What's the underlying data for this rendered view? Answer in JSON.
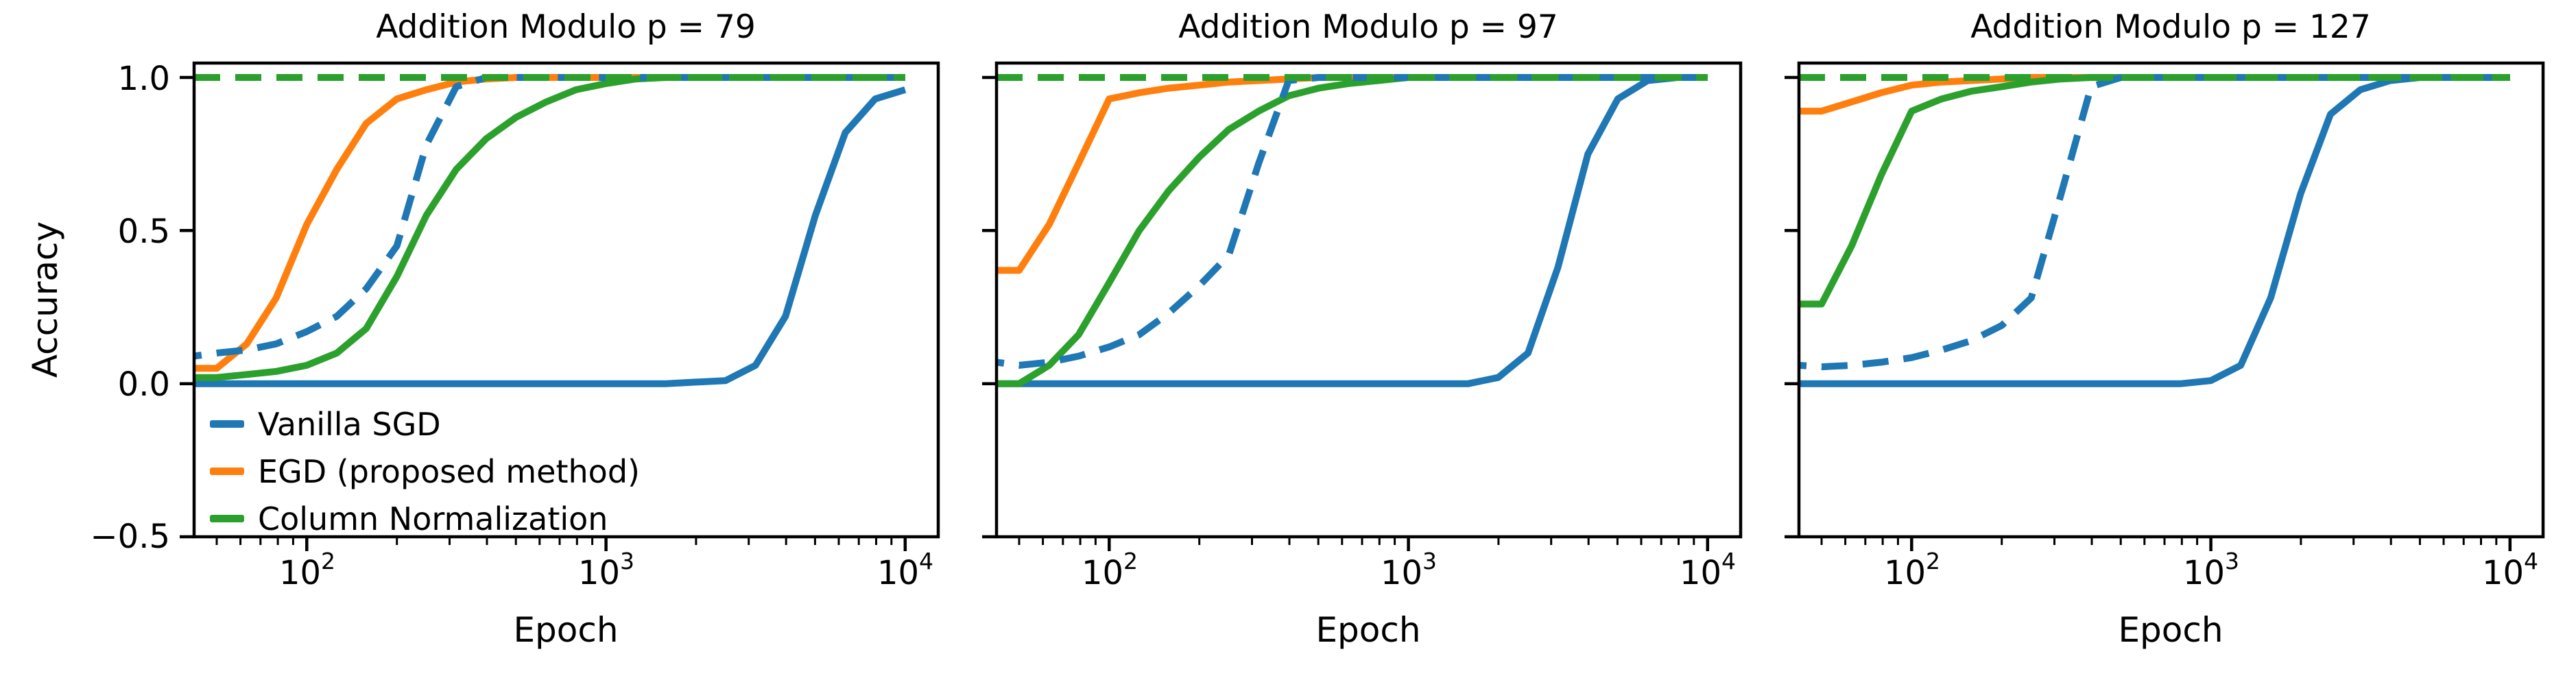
{
  "figure": {
    "ylabel": "Accuracy",
    "background": "#ffffff",
    "palette": {
      "blue": "#1f77b4",
      "orange": "#ff7f0e",
      "green": "#2ca02c"
    },
    "axis_color": "#000000",
    "yticks": [
      {
        "label": "1.0",
        "value": 1.0
      },
      {
        "label": "0.5",
        "value": 0.5
      },
      {
        "label": "0.0",
        "value": 0.0
      },
      {
        "label": "−0.5",
        "value": -0.5
      }
    ],
    "xticks": [
      {
        "base": "10",
        "exp": "2",
        "value": 100
      },
      {
        "base": "10",
        "exp": "3",
        "value": 1000
      },
      {
        "base": "10",
        "exp": "4",
        "value": 10000
      }
    ],
    "legend": [
      {
        "label": "Vanilla SGD",
        "color": "blue"
      },
      {
        "label": "EGD (proposed method)",
        "color": "orange"
      },
      {
        "label": "Column Normalization",
        "color": "green"
      }
    ]
  },
  "chart_data": [
    {
      "type": "line",
      "title": "Addition Modulo p = 79",
      "xlabel": "Epoch",
      "ylabel": "Accuracy",
      "xscale": "log",
      "xlim": [
        42,
        12900
      ],
      "ylim": [
        -0.5,
        1.047
      ],
      "grid": false,
      "legend_position": "lower left",
      "x": [
        42,
        50,
        63,
        79,
        100,
        126,
        158,
        200,
        251,
        316,
        398,
        501,
        631,
        794,
        1000,
        1259,
        1585,
        1995,
        2512,
        3162,
        3981,
        5012,
        6310,
        7943,
        10000
      ],
      "series": [
        {
          "name": "Vanilla SGD",
          "color": "blue",
          "line": "solid",
          "values": [
            0,
            0,
            0,
            0,
            0,
            0,
            0,
            0,
            0,
            0,
            0,
            0,
            0,
            0,
            0,
            0,
            0,
            0.005,
            0.01,
            0.06,
            0.22,
            0.55,
            0.82,
            0.93,
            0.96
          ]
        },
        {
          "name": "EGD (proposed method)",
          "color": "orange",
          "line": "solid",
          "values": [
            0.05,
            0.05,
            0.13,
            0.28,
            0.52,
            0.7,
            0.85,
            0.93,
            0.96,
            0.985,
            0.995,
            1,
            1,
            1,
            1,
            1,
            1,
            1,
            1,
            1,
            1,
            1,
            1,
            1,
            1
          ]
        },
        {
          "name": "Column Normalization",
          "color": "green",
          "line": "solid",
          "values": [
            0.02,
            0.02,
            0.03,
            0.04,
            0.06,
            0.1,
            0.18,
            0.35,
            0.55,
            0.7,
            0.8,
            0.87,
            0.92,
            0.96,
            0.98,
            0.995,
            1,
            1,
            1,
            1,
            1,
            1,
            1,
            1,
            1
          ]
        },
        {
          "name": "Vanilla SGD",
          "color": "blue",
          "line": "dashed",
          "values": [
            0.09,
            0.1,
            0.11,
            0.13,
            0.17,
            0.22,
            0.31,
            0.45,
            0.78,
            0.97,
            1,
            1,
            1,
            1,
            1,
            1,
            1,
            1,
            1,
            1,
            1,
            1,
            1,
            1,
            1
          ]
        },
        {
          "name": "Column Normalization",
          "color": "green",
          "line": "dashed",
          "values": [
            1,
            1,
            1,
            1,
            1,
            1,
            1,
            1,
            1,
            1,
            1,
            1,
            1,
            1,
            1,
            1,
            1,
            1,
            1,
            1,
            1,
            1,
            1,
            1,
            1
          ]
        }
      ]
    },
    {
      "type": "line",
      "title": "Addition Modulo p = 97",
      "xlabel": "Epoch",
      "ylabel": "Accuracy",
      "xscale": "log",
      "xlim": [
        42,
        12900
      ],
      "ylim": [
        -0.5,
        1.047
      ],
      "grid": false,
      "x": [
        42,
        50,
        63,
        79,
        100,
        126,
        158,
        200,
        251,
        316,
        398,
        501,
        631,
        794,
        1000,
        1259,
        1585,
        1995,
        2512,
        3162,
        3981,
        5012,
        6310,
        7943,
        10000
      ],
      "series": [
        {
          "name": "Vanilla SGD",
          "color": "blue",
          "line": "solid",
          "values": [
            0,
            0,
            0,
            0,
            0,
            0,
            0,
            0,
            0,
            0,
            0,
            0,
            0,
            0,
            0,
            0,
            0,
            0.02,
            0.1,
            0.38,
            0.75,
            0.93,
            0.99,
            1,
            1
          ]
        },
        {
          "name": "EGD (proposed method)",
          "color": "orange",
          "line": "solid",
          "values": [
            0.37,
            0.37,
            0.52,
            0.72,
            0.93,
            0.95,
            0.965,
            0.975,
            0.985,
            0.99,
            0.995,
            1,
            1,
            1,
            1,
            1,
            1,
            1,
            1,
            1,
            1,
            1,
            1,
            1,
            1
          ]
        },
        {
          "name": "Column Normalization",
          "color": "green",
          "line": "solid",
          "values": [
            0,
            0,
            0.06,
            0.16,
            0.33,
            0.5,
            0.63,
            0.74,
            0.83,
            0.89,
            0.94,
            0.965,
            0.98,
            0.99,
            1,
            1,
            1,
            1,
            1,
            1,
            1,
            1,
            1,
            1,
            1
          ]
        },
        {
          "name": "Vanilla SGD",
          "color": "blue",
          "line": "dashed",
          "values": [
            0.07,
            0.06,
            0.07,
            0.09,
            0.12,
            0.16,
            0.23,
            0.32,
            0.42,
            0.72,
            0.99,
            1,
            1,
            1,
            1,
            1,
            1,
            1,
            1,
            1,
            1,
            1,
            1,
            1,
            1
          ]
        },
        {
          "name": "Column Normalization",
          "color": "green",
          "line": "dashed",
          "values": [
            1,
            1,
            1,
            1,
            1,
            1,
            1,
            1,
            1,
            1,
            1,
            1,
            1,
            1,
            1,
            1,
            1,
            1,
            1,
            1,
            1,
            1,
            1,
            1,
            1
          ]
        }
      ]
    },
    {
      "type": "line",
      "title": "Addition Modulo p = 127",
      "xlabel": "Epoch",
      "ylabel": "Accuracy",
      "xscale": "log",
      "xlim": [
        42,
        12900
      ],
      "ylim": [
        -0.5,
        1.047
      ],
      "grid": false,
      "x": [
        42,
        50,
        63,
        79,
        100,
        126,
        158,
        200,
        251,
        316,
        398,
        501,
        631,
        794,
        1000,
        1259,
        1585,
        1995,
        2512,
        3162,
        3981,
        5012,
        6310,
        7943,
        10000
      ],
      "series": [
        {
          "name": "Vanilla SGD",
          "color": "blue",
          "line": "solid",
          "values": [
            0,
            0,
            0,
            0,
            0,
            0,
            0,
            0,
            0,
            0,
            0,
            0,
            0,
            0,
            0.01,
            0.06,
            0.28,
            0.62,
            0.88,
            0.96,
            0.99,
            1,
            1,
            1,
            1
          ]
        },
        {
          "name": "EGD (proposed method)",
          "color": "orange",
          "line": "solid",
          "values": [
            0.89,
            0.89,
            0.92,
            0.95,
            0.975,
            0.985,
            0.99,
            0.995,
            1,
            1,
            1,
            1,
            1,
            1,
            1,
            1,
            1,
            1,
            1,
            1,
            1,
            1,
            1,
            1,
            1
          ]
        },
        {
          "name": "Column Normalization",
          "color": "green",
          "line": "solid",
          "values": [
            0.26,
            0.26,
            0.45,
            0.68,
            0.89,
            0.93,
            0.955,
            0.97,
            0.985,
            0.995,
            1,
            1,
            1,
            1,
            1,
            1,
            1,
            1,
            1,
            1,
            1,
            1,
            1,
            1,
            1
          ]
        },
        {
          "name": "Vanilla SGD",
          "color": "blue",
          "line": "dashed",
          "values": [
            0.06,
            0.055,
            0.06,
            0.07,
            0.085,
            0.11,
            0.14,
            0.19,
            0.28,
            0.62,
            0.97,
            1,
            1,
            1,
            1,
            1,
            1,
            1,
            1,
            1,
            1,
            1,
            1,
            1,
            1
          ]
        },
        {
          "name": "Column Normalization",
          "color": "green",
          "line": "dashed",
          "values": [
            1,
            1,
            1,
            1,
            1,
            1,
            1,
            1,
            1,
            1,
            1,
            1,
            1,
            1,
            1,
            1,
            1,
            1,
            1,
            1,
            1,
            1,
            1,
            1,
            1
          ]
        }
      ]
    }
  ]
}
